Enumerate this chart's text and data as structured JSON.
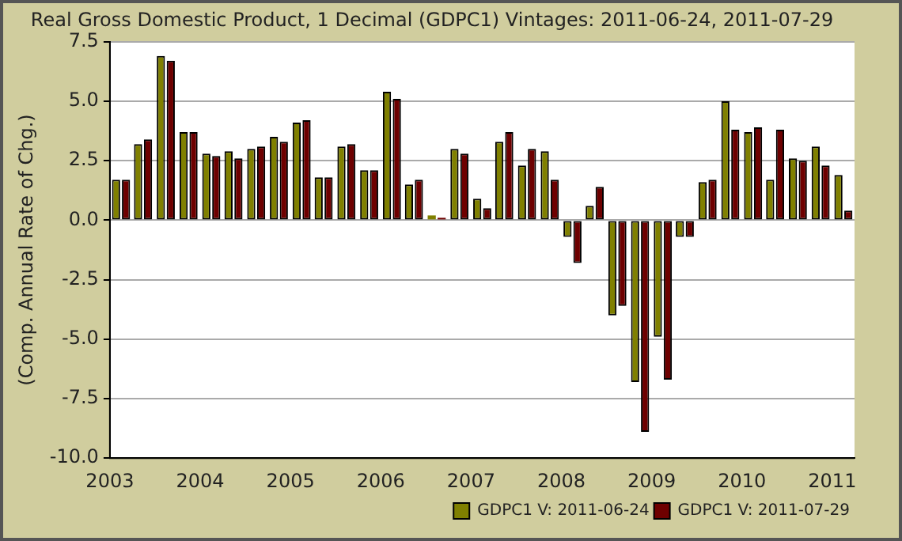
{
  "chart_data": {
    "type": "bar",
    "title": "Real Gross Domestic Product, 1 Decimal (GDPC1) Vintages: 2011-06-24, 2011-07-29",
    "ylabel": "(Comp. Annual Rate of Chg.)",
    "x": [
      "2003-02-15",
      "2003-05-15",
      "2003-08-15",
      "2003-11-15",
      "2004-02-15",
      "2004-05-15",
      "2004-08-15",
      "2004-11-15",
      "2005-02-15",
      "2005-05-15",
      "2005-08-15",
      "2005-11-15",
      "2006-02-15",
      "2006-05-15",
      "2006-08-15",
      "2006-11-15",
      "2007-02-15",
      "2007-05-15",
      "2007-08-15",
      "2007-11-15",
      "2008-02-15",
      "2008-05-15",
      "2008-08-15",
      "2008-11-15",
      "2009-02-15",
      "2009-05-15",
      "2009-08-15",
      "2009-11-15",
      "2010-02-15",
      "2010-05-15",
      "2010-08-15",
      "2010-11-15",
      "2011-02-15"
    ],
    "series": [
      {
        "name": "GDPC1 V: 2011-06-24",
        "color": "#808000",
        "values": [
          1.7,
          3.2,
          6.9,
          3.7,
          2.8,
          2.9,
          3.0,
          3.5,
          4.1,
          1.8,
          3.1,
          2.1,
          5.4,
          1.5,
          0.2,
          3.0,
          0.9,
          3.3,
          2.3,
          2.9,
          -0.7,
          0.6,
          -4.0,
          -6.8,
          -4.9,
          -0.7,
          1.6,
          5.0,
          3.7,
          1.7,
          2.6,
          3.1,
          1.9
        ]
      },
      {
        "name": "GDPC1 V: 2011-07-29",
        "color": "#6e0000",
        "values": [
          1.7,
          3.4,
          6.7,
          3.7,
          2.7,
          2.6,
          3.1,
          3.3,
          4.2,
          1.8,
          3.2,
          2.1,
          5.1,
          1.7,
          0.1,
          2.8,
          0.5,
          3.7,
          3.0,
          1.7,
          -1.8,
          1.4,
          -3.6,
          -8.9,
          -6.7,
          -0.7,
          1.7,
          3.8,
          3.9,
          3.8,
          2.5,
          2.3,
          0.4
        ]
      }
    ],
    "xlim": [
      "2003",
      "2011-04"
    ],
    "xticks": [
      {
        "value": "2003",
        "label": "2003"
      },
      {
        "value": "2004",
        "label": "2004"
      },
      {
        "value": "2005",
        "label": "2005"
      },
      {
        "value": "2006",
        "label": "2006"
      },
      {
        "value": "2007",
        "label": "2007"
      },
      {
        "value": "2008",
        "label": "2008"
      },
      {
        "value": "2009",
        "label": "2009"
      },
      {
        "value": "2010",
        "label": "2010"
      },
      {
        "value": "2011",
        "label": "2011"
      }
    ],
    "ylim": [
      -10,
      7.5
    ],
    "yticks": [
      {
        "value": -10,
        "label": "-10.0"
      },
      {
        "value": -7.5,
        "label": "-7.5"
      },
      {
        "value": -5,
        "label": "-5.0"
      },
      {
        "value": -2.5,
        "label": "-2.5"
      },
      {
        "value": 0,
        "label": "0.0"
      },
      {
        "value": 2.5,
        "label": "2.5"
      },
      {
        "value": 5,
        "label": "5.0"
      },
      {
        "value": 7.5,
        "label": "7.5"
      }
    ],
    "grid": "y",
    "legend": "bottom right"
  }
}
